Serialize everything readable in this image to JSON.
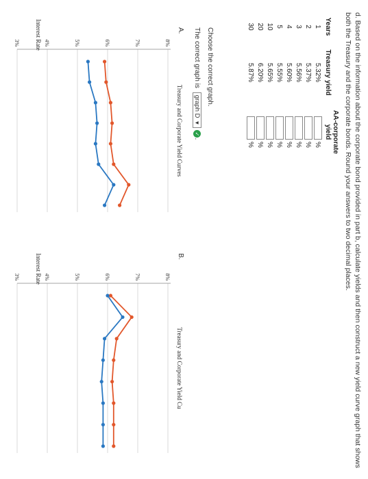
{
  "instructions": "d. Based on the information about the corporate bond provided in part b, calculate yields and then construct a new yield curve graph that shows both the Treasury and the corporate bonds. Round your answers to two decimal places.",
  "table": {
    "headers": [
      "Years",
      "Treasury yield",
      "AA-corporate yield"
    ],
    "rows": [
      {
        "year": "1",
        "treasury": "5.32%",
        "unit": "%"
      },
      {
        "year": "2",
        "treasury": "5.37%",
        "unit": "%"
      },
      {
        "year": "3",
        "treasury": "5.56%",
        "unit": "%"
      },
      {
        "year": "4",
        "treasury": "5.60%",
        "unit": "%"
      },
      {
        "year": "5",
        "treasury": "5.55%",
        "unit": "%"
      },
      {
        "year": "10",
        "treasury": "5.65%",
        "unit": "%"
      },
      {
        "year": "20",
        "treasury": "6.20%",
        "unit": "%"
      },
      {
        "year": "30",
        "treasury": "5.87%",
        "unit": "%"
      }
    ]
  },
  "choose_text": "Choose the correct graph.",
  "correct_text": "The correct graph is",
  "selected_graph": "graph D",
  "colors": {
    "treasury": "#2a78c2",
    "corporate": "#e2572b",
    "check": "#2aa04a"
  },
  "graph_a": {
    "label": "A.",
    "title": "Treasury and Corporate Yield Curves",
    "ylabel": "Interest Rate",
    "yticks": [
      "3%",
      "4%",
      "5%",
      "6%",
      "7%",
      "8%"
    ]
  },
  "graph_b": {
    "label": "B.",
    "title": "Treasury and Corporate Yield Cu",
    "ylabel": "Interest Rate",
    "yticks": [
      "3%",
      "4%",
      "5%",
      "6%",
      "7%",
      "8%"
    ]
  },
  "chart_data": [
    {
      "type": "line",
      "title": "Treasury and Corporate Yield Curves",
      "xlabel": "",
      "ylabel": "Interest Rate",
      "ylim": [
        3,
        8
      ],
      "x": [
        1,
        2,
        3,
        4,
        5,
        10,
        20,
        30
      ],
      "series": [
        {
          "values": [
            5.9,
            5.95,
            6.1,
            6.15,
            6.1,
            6.2,
            6.7,
            6.4
          ]
        },
        {
          "values": [
            5.35,
            5.4,
            5.6,
            5.65,
            5.6,
            5.7,
            6.2,
            5.9
          ]
        }
      ]
    },
    {
      "type": "line",
      "title": "Treasury and Corporate Yield Cu",
      "xlabel": "",
      "ylabel": "Interest Rate",
      "ylim": [
        3,
        8
      ],
      "x": [
        1,
        2,
        3,
        4,
        5,
        10,
        20,
        30
      ],
      "series": [
        {
          "values": [
            6.1,
            6.8,
            6.3,
            6.2,
            6.15,
            6.2,
            6.2,
            6.2
          ]
        },
        {
          "values": [
            6.0,
            6.5,
            5.9,
            5.85,
            5.8,
            5.85,
            5.85,
            5.85
          ]
        }
      ]
    }
  ]
}
